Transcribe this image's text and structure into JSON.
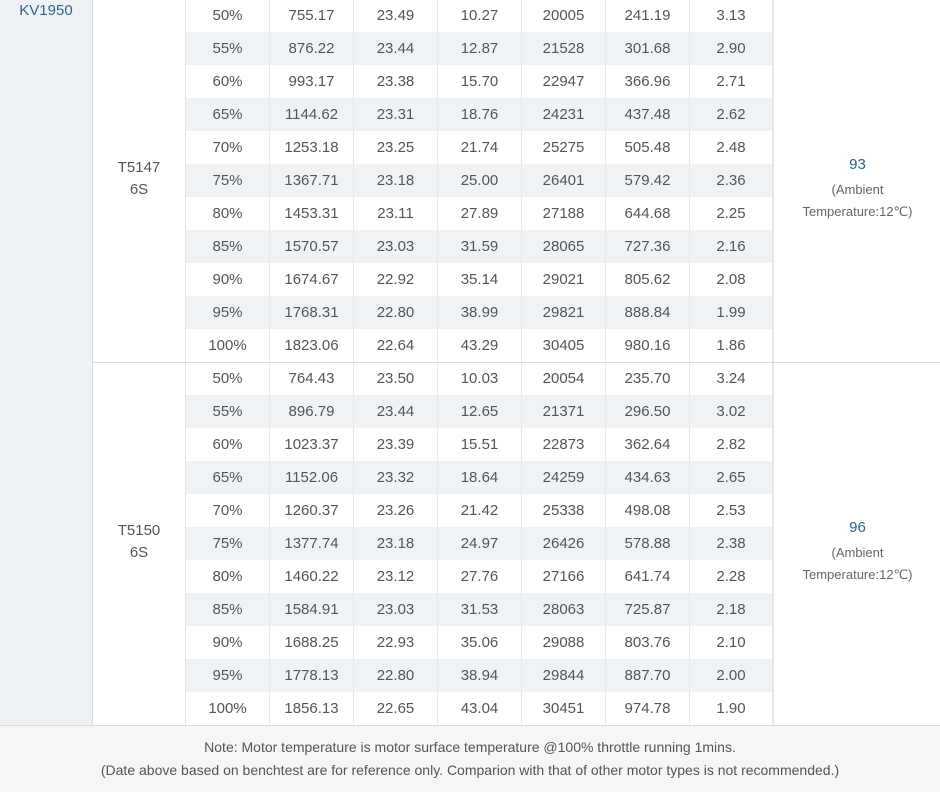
{
  "kv_label": "KV1950",
  "groups": [
    {
      "prop_line1": "T5147",
      "prop_line2": "6S",
      "temp_value": "93",
      "temp_note_line1": "(Ambient",
      "temp_note_line2": "Temperature:12℃)",
      "rows": [
        [
          "50%",
          "755.17",
          "23.49",
          "10.27",
          "20005",
          "241.19",
          "3.13"
        ],
        [
          "55%",
          "876.22",
          "23.44",
          "12.87",
          "21528",
          "301.68",
          "2.90"
        ],
        [
          "60%",
          "993.17",
          "23.38",
          "15.70",
          "22947",
          "366.96",
          "2.71"
        ],
        [
          "65%",
          "1144.62",
          "23.31",
          "18.76",
          "24231",
          "437.48",
          "2.62"
        ],
        [
          "70%",
          "1253.18",
          "23.25",
          "21.74",
          "25275",
          "505.48",
          "2.48"
        ],
        [
          "75%",
          "1367.71",
          "23.18",
          "25.00",
          "26401",
          "579.42",
          "2.36"
        ],
        [
          "80%",
          "1453.31",
          "23.11",
          "27.89",
          "27188",
          "644.68",
          "2.25"
        ],
        [
          "85%",
          "1570.57",
          "23.03",
          "31.59",
          "28065",
          "727.36",
          "2.16"
        ],
        [
          "90%",
          "1674.67",
          "22.92",
          "35.14",
          "29021",
          "805.62",
          "2.08"
        ],
        [
          "95%",
          "1768.31",
          "22.80",
          "38.99",
          "29821",
          "888.84",
          "1.99"
        ],
        [
          "100%",
          "1823.06",
          "22.64",
          "43.29",
          "30405",
          "980.16",
          "1.86"
        ]
      ]
    },
    {
      "prop_line1": "T5150",
      "prop_line2": "6S",
      "temp_value": "96",
      "temp_note_line1": "(Ambient",
      "temp_note_line2": "Temperature:12℃)",
      "rows": [
        [
          "50%",
          "764.43",
          "23.50",
          "10.03",
          "20054",
          "235.70",
          "3.24"
        ],
        [
          "55%",
          "896.79",
          "23.44",
          "12.65",
          "21371",
          "296.50",
          "3.02"
        ],
        [
          "60%",
          "1023.37",
          "23.39",
          "15.51",
          "22873",
          "362.64",
          "2.82"
        ],
        [
          "65%",
          "1152.06",
          "23.32",
          "18.64",
          "24259",
          "434.63",
          "2.65"
        ],
        [
          "70%",
          "1260.37",
          "23.26",
          "21.42",
          "25338",
          "498.08",
          "2.53"
        ],
        [
          "75%",
          "1377.74",
          "23.18",
          "24.97",
          "26426",
          "578.88",
          "2.38"
        ],
        [
          "80%",
          "1460.22",
          "23.12",
          "27.76",
          "27166",
          "641.74",
          "2.28"
        ],
        [
          "85%",
          "1584.91",
          "23.03",
          "31.53",
          "28063",
          "725.87",
          "2.18"
        ],
        [
          "90%",
          "1688.25",
          "22.93",
          "35.06",
          "29088",
          "803.76",
          "2.10"
        ],
        [
          "95%",
          "1778.13",
          "22.80",
          "38.94",
          "29844",
          "887.70",
          "2.00"
        ],
        [
          "100%",
          "1856.13",
          "22.65",
          "43.04",
          "30451",
          "974.78",
          "1.90"
        ]
      ]
    }
  ],
  "footer": {
    "line1": "Note: Motor temperature is motor surface temperature @100% throttle running 1mins.",
    "line2": "(Date above based on benchtest are for reference only. Comparion with that of other motor types is not recommended.)"
  },
  "colors": {
    "accent_text": "#2f6690",
    "row_alt_bg": "#f0f3f6",
    "kv_bg": "#eef2f6",
    "footer_bg": "#f5f6f7"
  }
}
